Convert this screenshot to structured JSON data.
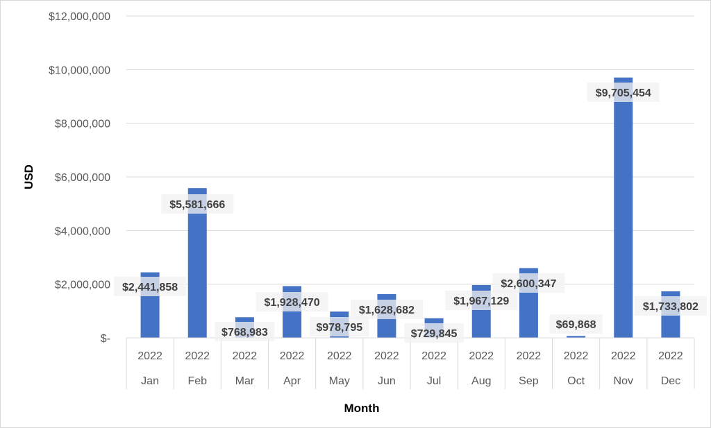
{
  "chart_data": {
    "type": "bar",
    "title": "",
    "xlabel": "Month",
    "ylabel": "USD",
    "ylim": [
      0,
      12000000
    ],
    "y_ticks": [
      {
        "value": 0,
        "label": "$-"
      },
      {
        "value": 2000000,
        "label": "$2,000,000"
      },
      {
        "value": 4000000,
        "label": "$4,000,000"
      },
      {
        "value": 6000000,
        "label": "$6,000,000"
      },
      {
        "value": 8000000,
        "label": "$8,000,000"
      },
      {
        "value": 10000000,
        "label": "$10,000,000"
      },
      {
        "value": 12000000,
        "label": "$12,000,000"
      }
    ],
    "grid": true,
    "bar_color": "#4472c4",
    "categories": [
      {
        "year": "2022",
        "month": "Jan"
      },
      {
        "year": "2022",
        "month": "Feb"
      },
      {
        "year": "2022",
        "month": "Mar"
      },
      {
        "year": "2022",
        "month": "Apr"
      },
      {
        "year": "2022",
        "month": "May"
      },
      {
        "year": "2022",
        "month": "Jun"
      },
      {
        "year": "2022",
        "month": "Jul"
      },
      {
        "year": "2022",
        "month": "Aug"
      },
      {
        "year": "2022",
        "month": "Sep"
      },
      {
        "year": "2022",
        "month": "Oct"
      },
      {
        "year": "2022",
        "month": "Nov"
      },
      {
        "year": "2022",
        "month": "Dec"
      }
    ],
    "values": [
      2441858,
      5581666,
      768983,
      1928470,
      978795,
      1628682,
      729845,
      1967129,
      2600347,
      69868,
      9705454,
      1733802
    ],
    "data_labels": [
      "$2,441,858",
      "$5,581,666",
      "$768,983",
      "$1,928,470",
      "$978,795",
      "$1,628,682",
      "$729,845",
      "$1,967,129",
      "$2,600,347",
      "$69,868",
      "$9,705,454",
      "$1,733,802"
    ]
  }
}
